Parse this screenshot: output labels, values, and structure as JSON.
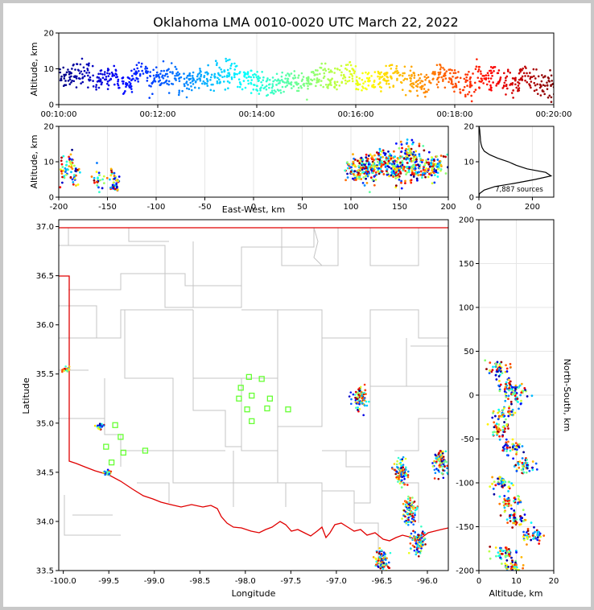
{
  "figure": {
    "title": "Oklahoma LMA 0010-0020 UTC March 22, 2022",
    "source_count_label": "7,887 sources"
  },
  "chart_data": [
    {
      "id": "time_height",
      "type": "scatter",
      "title": "Oklahoma LMA 0010-0020 UTC March 22, 2022",
      "ylabel": "Altitude, km",
      "xlim": [
        "00:10:00",
        "00:20:00"
      ],
      "ylim": [
        0,
        20
      ],
      "xticks": [
        "00:10:00",
        "00:12:00",
        "00:14:00",
        "00:16:00",
        "00:18:00",
        "00:20:00"
      ],
      "yticks": [
        0,
        10,
        20
      ],
      "colormap": "jet (time)",
      "x_minutes": [
        0,
        0.3,
        0.6,
        0.9,
        1.2,
        1.5,
        1.8,
        2.1,
        2.4,
        2.7,
        3.0,
        3.3,
        3.6,
        3.9,
        4.2,
        4.5,
        4.8,
        5.1,
        5.4,
        5.7,
        6.0,
        6.3,
        6.6,
        6.9,
        7.2,
        7.5,
        7.8,
        8.1,
        8.4,
        8.7,
        9.0,
        9.3,
        9.6,
        9.9
      ],
      "altitude_km": [
        8,
        9,
        7,
        8,
        6,
        9,
        7,
        8,
        6,
        7,
        8,
        9,
        7,
        6,
        5,
        7,
        6,
        8,
        7,
        9,
        6,
        7,
        8,
        7,
        6,
        8,
        7,
        6,
        8,
        7,
        6,
        7,
        6,
        5
      ]
    },
    {
      "id": "ew_height",
      "type": "scatter",
      "xlabel": "East-West, km",
      "ylabel": "Altitude, km",
      "xlim": [
        -200,
        200
      ],
      "ylim": [
        0,
        20
      ],
      "xticks": [
        -200,
        -150,
        -100,
        -50,
        0,
        50,
        100,
        150,
        200
      ],
      "yticks": [
        0,
        10,
        20
      ],
      "x_km": [
        -195,
        -188,
        -182,
        -160,
        -145,
        -140,
        105,
        115,
        125,
        140,
        150,
        160,
        170,
        185
      ],
      "altitude_km": [
        8,
        10,
        6,
        5,
        5,
        4,
        8,
        7,
        9,
        10,
        7,
        12,
        8,
        8
      ]
    },
    {
      "id": "altitude_histogram",
      "type": "line",
      "xlim": [
        0,
        280
      ],
      "ylim": [
        0,
        20
      ],
      "xticks": [
        0,
        200
      ],
      "yticks": [
        0,
        10,
        20
      ],
      "altitude_km": [
        0,
        1,
        2,
        3,
        4,
        5,
        6,
        7,
        8,
        9,
        10,
        11,
        12,
        13,
        14,
        15,
        16,
        17,
        18,
        19,
        20
      ],
      "count": [
        0,
        2,
        20,
        60,
        140,
        210,
        270,
        250,
        180,
        140,
        110,
        70,
        40,
        20,
        12,
        8,
        6,
        5,
        4,
        3,
        1
      ]
    },
    {
      "id": "plan_view",
      "type": "scatter",
      "xlabel": "Longitude",
      "ylabel": "Latitude",
      "xlim": [
        -100.05,
        -95.77
      ],
      "ylim": [
        33.5,
        37.07
      ],
      "xticks": [
        -100.0,
        -99.5,
        -99.0,
        -98.5,
        -98.0,
        -97.5,
        -97.0,
        -96.5,
        -96.0
      ],
      "yticks": [
        33.5,
        34.0,
        34.5,
        35.0,
        35.5,
        36.0,
        36.5,
        37.0
      ],
      "stations": {
        "lon": [
          -97.96,
          -98.05,
          -97.82,
          -97.93,
          -98.07,
          -97.93,
          -97.73,
          -97.98,
          -97.76,
          -97.53,
          -99.43,
          -99.37,
          -99.53,
          -99.34,
          -99.47,
          -99.1
        ],
        "lat": [
          35.47,
          35.36,
          35.45,
          35.28,
          35.25,
          35.02,
          35.25,
          35.14,
          35.15,
          35.14,
          34.98,
          34.86,
          34.76,
          34.7,
          34.6,
          34.72
        ]
      },
      "lightning": {
        "lon": [
          -99.97,
          -99.6,
          -99.52,
          -96.75,
          -96.3,
          -96.2,
          -96.1,
          -95.85,
          -96.5
        ],
        "lat": [
          35.55,
          34.97,
          34.5,
          35.25,
          34.5,
          34.1,
          33.8,
          34.6,
          33.6
        ]
      }
    },
    {
      "id": "ns_altitude",
      "type": "scatter",
      "xlabel": "Altitude, km",
      "ylabel": "North-South, km",
      "xlim": [
        0,
        20
      ],
      "ylim": [
        -200,
        200
      ],
      "xticks": [
        0,
        10,
        20
      ],
      "yticks": [
        -200,
        -150,
        -100,
        -50,
        0,
        50,
        100,
        150,
        200
      ],
      "altitude_km": [
        5,
        8,
        10,
        7,
        6,
        9,
        12,
        6,
        8,
        10,
        14,
        7,
        9
      ],
      "ns_km": [
        30,
        10,
        0,
        -20,
        -40,
        -60,
        -80,
        -100,
        -120,
        -140,
        -160,
        -180,
        -195
      ]
    }
  ]
}
